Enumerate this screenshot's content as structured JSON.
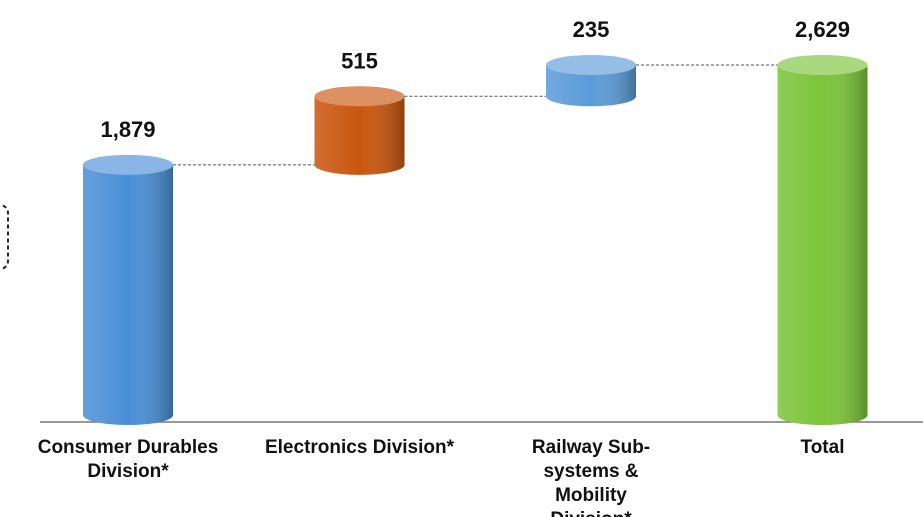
{
  "chart_data": {
    "type": "waterfall",
    "categories": [
      "Consumer Durables Division*",
      "Electronics Division*",
      "Railway Sub-systems & Mobility Division*",
      "Total"
    ],
    "values": [
      1879,
      515,
      235,
      2629
    ],
    "value_labels": [
      "1,879",
      "515",
      "235",
      "2,629"
    ],
    "colors": [
      "#4a8fd6",
      "#c9560e",
      "#5b9bd8",
      "#7cc43a"
    ]
  }
}
